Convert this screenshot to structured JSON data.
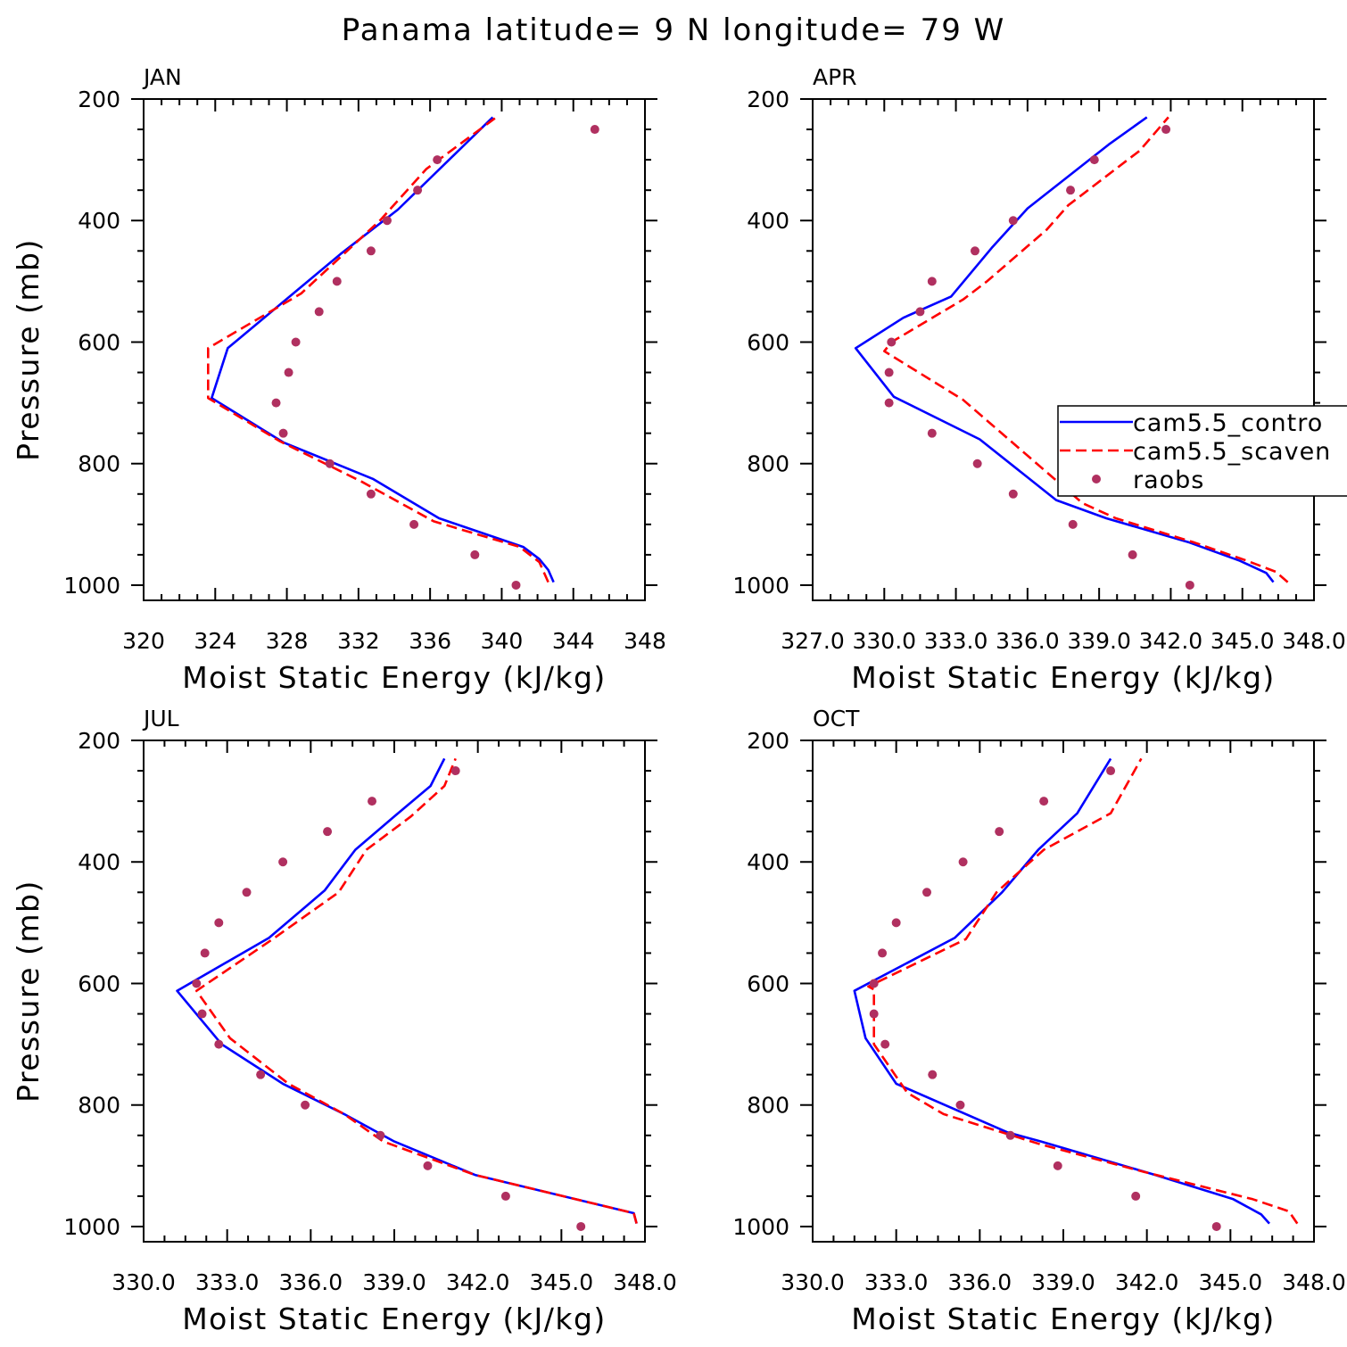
{
  "figure_title": "Panama  latitude= 9 N longitude= 79 W",
  "legend": {
    "items": [
      {
        "label": "cam5.5_contro",
        "style": "solid",
        "color": "#0000ff"
      },
      {
        "label": "cam5.5_scaven",
        "style": "dashed",
        "color": "#ff0000"
      },
      {
        "label": "raobs",
        "style": "dot",
        "color": "#b03060"
      }
    ]
  },
  "colors": {
    "control": "#0000ff",
    "scavenging": "#ff0000",
    "raobs": "#b03060",
    "axes": "#000000"
  },
  "chart_data": [
    {
      "type": "line",
      "title": "JAN",
      "xlabel": "Moist Static Energy (kJ/kg)",
      "ylabel": "Pressure (mb)",
      "xlim": [
        320,
        348
      ],
      "ylim": [
        1000,
        200
      ],
      "y_reversed": true,
      "xticks": [
        320,
        324,
        328,
        332,
        336,
        340,
        344,
        348
      ],
      "xtick_labels": [
        "320",
        "324",
        "328",
        "332",
        "336",
        "340",
        "344",
        "348"
      ],
      "yticks": [
        200,
        400,
        600,
        800,
        1000
      ],
      "ytick_labels": [
        "200",
        "400",
        "600",
        "800",
        "1000"
      ],
      "series": [
        {
          "name": "cam5.5_contro",
          "style": "solid",
          "x": [
            342.9,
            342.6,
            342.1,
            341.2,
            336.5,
            332.8,
            327.8,
            323.8,
            324.7,
            331.0,
            334.2,
            339.5
          ],
          "y": [
            995,
            975,
            957,
            937,
            890,
            825,
            765,
            692,
            610,
            455,
            382,
            230
          ]
        },
        {
          "name": "cam5.5_scaven",
          "style": "dashed",
          "x": [
            342.6,
            342.1,
            341.0,
            336.2,
            332.2,
            327.6,
            323.6,
            323.6,
            328.8,
            333.2,
            335.8,
            339.7
          ],
          "y": [
            995,
            962,
            937,
            895,
            830,
            763,
            692,
            610,
            520,
            400,
            315,
            230
          ]
        },
        {
          "name": "raobs",
          "style": "dot",
          "x": [
            345.2,
            336.4,
            335.3,
            333.6,
            332.7,
            330.8,
            329.8,
            328.5,
            328.1,
            327.4,
            327.8,
            330.4,
            332.7,
            335.1,
            338.5,
            340.8
          ],
          "y": [
            250,
            300,
            350,
            400,
            450,
            500,
            550,
            600,
            650,
            700,
            750,
            800,
            850,
            900,
            950,
            1000
          ]
        }
      ]
    },
    {
      "type": "line",
      "title": "APR",
      "xlabel": "Moist Static Energy (kJ/kg)",
      "ylabel": "",
      "xlim": [
        327.0,
        348.0
      ],
      "ylim": [
        1000,
        200
      ],
      "y_reversed": true,
      "xticks": [
        327.0,
        330.0,
        333.0,
        336.0,
        339.0,
        342.0,
        345.0,
        348.0
      ],
      "xtick_labels": [
        "327.0",
        "330.0",
        "333.0",
        "336.0",
        "339.0",
        "342.0",
        "345.0",
        "348.0"
      ],
      "yticks": [
        200,
        400,
        600,
        800,
        1000
      ],
      "ytick_labels": [
        "200",
        "400",
        "600",
        "800",
        "1000"
      ],
      "series": [
        {
          "name": "cam5.5_contro",
          "style": "solid",
          "x": [
            346.3,
            346.0,
            344.9,
            342.8,
            339.3,
            337.2,
            334.0,
            330.4,
            328.8,
            330.8,
            332.8,
            334.5,
            336.0,
            339.4,
            341.0
          ],
          "y": [
            995,
            980,
            960,
            930,
            890,
            860,
            760,
            690,
            610,
            560,
            525,
            445,
            380,
            275,
            230
          ]
        },
        {
          "name": "cam5.5_scaven",
          "style": "dashed",
          "x": [
            346.9,
            346.4,
            345.2,
            343.0,
            339.7,
            338.3,
            333.3,
            330.0,
            330.3,
            333.3,
            334.3,
            336.8,
            337.7,
            340.7,
            341.9
          ],
          "y": [
            995,
            978,
            960,
            930,
            890,
            865,
            695,
            615,
            600,
            530,
            500,
            415,
            375,
            285,
            230
          ]
        },
        {
          "name": "raobs",
          "style": "dot",
          "x": [
            341.8,
            338.8,
            337.8,
            335.4,
            333.8,
            332.0,
            331.5,
            330.3,
            330.2,
            330.2,
            332.0,
            333.9,
            335.4,
            337.9,
            340.4,
            342.8
          ],
          "y": [
            250,
            300,
            350,
            400,
            450,
            500,
            550,
            600,
            650,
            700,
            750,
            800,
            850,
            900,
            950,
            1000
          ]
        }
      ]
    },
    {
      "type": "line",
      "title": "JUL",
      "xlabel": "Moist Static Energy (kJ/kg)",
      "ylabel": "Pressure (mb)",
      "xlim": [
        330.0,
        348.0
      ],
      "ylim": [
        1000,
        200
      ],
      "y_reversed": true,
      "xticks": [
        330.0,
        333.0,
        336.0,
        339.0,
        342.0,
        345.0,
        348.0
      ],
      "xtick_labels": [
        "330.0",
        "333.0",
        "336.0",
        "339.0",
        "342.0",
        "345.0",
        "348.0"
      ],
      "yticks": [
        200,
        400,
        600,
        800,
        1000
      ],
      "ytick_labels": [
        "200",
        "400",
        "600",
        "800",
        "1000"
      ],
      "series": [
        {
          "name": "cam5.5_contro",
          "style": "solid",
          "x": [
            347.7,
            347.6,
            341.9,
            339.0,
            337.2,
            335.0,
            332.8,
            331.2,
            334.5,
            336.5,
            337.6,
            339.0,
            340.3,
            340.8
          ],
          "y": [
            995,
            978,
            915,
            860,
            815,
            765,
            700,
            612,
            525,
            447,
            380,
            325,
            275,
            230
          ]
        },
        {
          "name": "cam5.5_scaven",
          "style": "dashed",
          "x": [
            347.7,
            347.6,
            341.9,
            338.6,
            337.2,
            335.2,
            333.1,
            331.9,
            334.7,
            337.0,
            338.0,
            339.6,
            340.8,
            341.2
          ],
          "y": [
            995,
            978,
            915,
            860,
            815,
            765,
            690,
            612,
            525,
            450,
            380,
            325,
            275,
            230
          ]
        },
        {
          "name": "raobs",
          "style": "dot",
          "x": [
            341.2,
            338.2,
            336.6,
            335.0,
            333.7,
            332.7,
            332.2,
            331.9,
            332.1,
            332.7,
            334.2,
            335.8,
            338.5,
            340.2,
            343.0,
            345.7
          ],
          "y": [
            250,
            300,
            350,
            400,
            450,
            500,
            550,
            600,
            650,
            700,
            750,
            800,
            850,
            900,
            950,
            1000
          ]
        }
      ]
    },
    {
      "type": "line",
      "title": "OCT",
      "xlabel": "Moist Static Energy (kJ/kg)",
      "ylabel": "",
      "xlim": [
        330.0,
        348.0
      ],
      "ylim": [
        1000,
        200
      ],
      "y_reversed": true,
      "xticks": [
        330.0,
        333.0,
        336.0,
        339.0,
        342.0,
        345.0,
        348.0
      ],
      "xtick_labels": [
        "330.0",
        "333.0",
        "336.0",
        "339.0",
        "342.0",
        "345.0",
        "348.0"
      ],
      "yticks": [
        200,
        400,
        600,
        800,
        1000
      ],
      "ytick_labels": [
        "200",
        "400",
        "600",
        "800",
        "1000"
      ],
      "series": [
        {
          "name": "cam5.5_contro",
          "style": "solid",
          "x": [
            346.4,
            346.1,
            345.1,
            342.3,
            338.2,
            337.0,
            333.0,
            331.9,
            331.5,
            335.1,
            336.8,
            338.1,
            339.5,
            340.7
          ],
          "y": [
            995,
            980,
            955,
            915,
            860,
            845,
            765,
            690,
            612,
            525,
            450,
            380,
            320,
            230
          ]
        },
        {
          "name": "cam5.5_scaven",
          "style": "dashed",
          "x": [
            347.4,
            347.1,
            345.8,
            341.9,
            338.2,
            334.7,
            333.4,
            332.2,
            332.2,
            332.0,
            335.5,
            336.6,
            338.3,
            340.7,
            341.8
          ],
          "y": [
            995,
            975,
            955,
            910,
            865,
            815,
            780,
            700,
            610,
            605,
            527,
            450,
            380,
            320,
            230
          ]
        },
        {
          "name": "raobs",
          "style": "dot",
          "x": [
            340.7,
            338.3,
            336.7,
            335.4,
            334.1,
            333.0,
            332.5,
            332.2,
            332.2,
            332.6,
            334.3,
            335.3,
            337.1,
            338.8,
            341.6,
            344.5
          ],
          "y": [
            250,
            300,
            350,
            400,
            450,
            500,
            550,
            600,
            650,
            700,
            750,
            800,
            850,
            900,
            950,
            1000
          ]
        }
      ]
    }
  ]
}
